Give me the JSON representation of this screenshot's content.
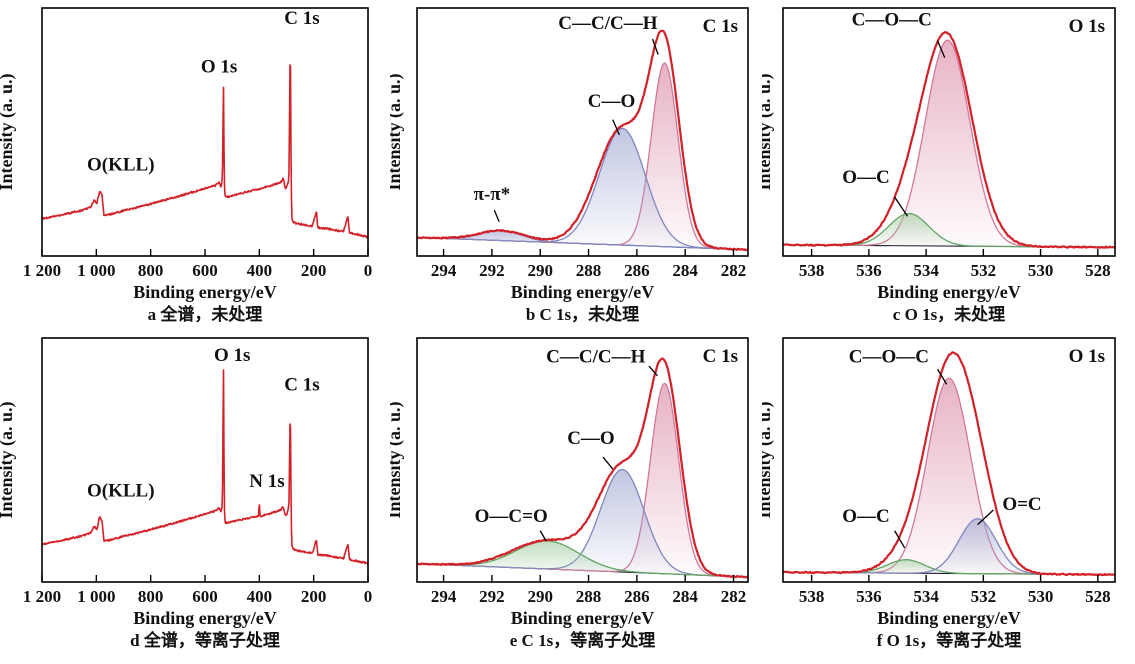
{
  "figure_name": "XPS spectra figure",
  "colors": {
    "envelope": "#d42027",
    "baseline": "#16162c",
    "pink_stroke": "#d4769c",
    "pink_fill": "#d8849f",
    "blue_stroke": "#7e87c0",
    "blue_fill": "#9ba3cf",
    "green_stroke": "#63a563",
    "green_fill": "#9cc99c",
    "text": "#111111"
  },
  "chart_data": [
    {
      "id": "a",
      "type": "line",
      "panel_type": "survey",
      "corner_label": "",
      "xlabel": "Binding energy/eV",
      "ylabel": "Intensity (a. u.)",
      "caption": "a 全谱，未处理",
      "x_range": [
        1200,
        0
      ],
      "tick_values": [
        1200,
        1000,
        800,
        600,
        400,
        200,
        0
      ],
      "tick_labels": [
        "1 200",
        "1 000",
        "800",
        "600",
        "400",
        "200",
        "0"
      ],
      "curve": [
        [
          1200,
          0.15
        ],
        [
          1120,
          0.168
        ],
        [
          1050,
          0.185
        ],
        [
          1020,
          0.198
        ],
        [
          1008,
          0.225
        ],
        [
          998,
          0.212
        ],
        [
          988,
          0.262
        ],
        [
          979,
          0.246
        ],
        [
          972,
          0.163
        ],
        [
          950,
          0.168
        ],
        [
          900,
          0.183
        ],
        [
          850,
          0.196
        ],
        [
          800,
          0.21
        ],
        [
          750,
          0.225
        ],
        [
          700,
          0.24
        ],
        [
          650,
          0.256
        ],
        [
          600,
          0.272
        ],
        [
          560,
          0.285
        ],
        [
          548,
          0.298
        ],
        [
          541,
          0.278
        ],
        [
          536,
          0.31
        ],
        [
          532,
          0.695
        ],
        [
          529,
          0.3
        ],
        [
          526,
          0.237
        ],
        [
          510,
          0.24
        ],
        [
          470,
          0.252
        ],
        [
          430,
          0.263
        ],
        [
          400,
          0.271
        ],
        [
          370,
          0.28
        ],
        [
          340,
          0.29
        ],
        [
          320,
          0.299
        ],
        [
          312,
          0.312
        ],
        [
          304,
          0.272
        ],
        [
          297,
          0.284
        ],
        [
          291,
          0.315
        ],
        [
          286,
          0.9
        ],
        [
          283.5,
          0.43
        ],
        [
          281,
          0.158
        ],
        [
          276,
          0.138
        ],
        [
          265,
          0.132
        ],
        [
          245,
          0.128
        ],
        [
          225,
          0.124
        ],
        [
          205,
          0.12
        ],
        [
          190,
          0.182
        ],
        [
          185,
          0.115
        ],
        [
          170,
          0.112
        ],
        [
          150,
          0.11
        ],
        [
          130,
          0.106
        ],
        [
          110,
          0.102
        ],
        [
          90,
          0.099
        ],
        [
          74,
          0.162
        ],
        [
          68,
          0.094
        ],
        [
          50,
          0.09
        ],
        [
          25,
          0.083
        ],
        [
          0,
          0.076
        ]
      ],
      "labels": [
        {
          "text": "O(KLL)",
          "ev": 910,
          "rel": 0.345
        },
        {
          "text": "O 1s",
          "ev": 548,
          "rel": 0.74
        },
        {
          "text": "C 1s",
          "ev": 243,
          "rel": 0.935
        }
      ]
    },
    {
      "id": "b",
      "type": "area",
      "panel_type": "fitted",
      "corner_label": "C 1s",
      "xlabel": "Binding energy/eV",
      "ylabel": "Intensity (a. u.)",
      "caption": "b C 1s，未处理",
      "x_range": [
        295.1,
        281.4
      ],
      "tick_values": [
        294,
        292,
        290,
        288,
        286,
        284,
        282
      ],
      "tick_labels": [
        "294",
        "292",
        "290",
        "288",
        "286",
        "284",
        "282"
      ],
      "baseline": [
        0.075,
        0.025
      ],
      "components": [
        {
          "name": "C-C/C-H",
          "center": 284.85,
          "sigma": 0.55,
          "amp": 0.74,
          "color": "pink"
        },
        {
          "name": "C-O",
          "center": 286.6,
          "sigma": 0.95,
          "amp": 0.47,
          "color": "blue"
        },
        {
          "name": "pi-pi*",
          "center": 291.6,
          "sigma": 0.85,
          "amp": 0.04,
          "color": "blue"
        }
      ],
      "labels": [
        {
          "text": "C—C/C—H",
          "ev": 287.2,
          "rel": 0.915,
          "leader": [
            [
              285.35,
              0.875
            ],
            [
              285.12,
              0.812
            ]
          ]
        },
        {
          "text": "C—O",
          "ev": 287.05,
          "rel": 0.6,
          "leader": [
            [
              287.0,
              0.55
            ],
            [
              286.72,
              0.488
            ]
          ]
        },
        {
          "text": "π-π*",
          "ev": 292.0,
          "rel": 0.225,
          "leader": [
            [
              291.9,
              0.185
            ],
            [
              291.7,
              0.138
            ]
          ]
        }
      ]
    },
    {
      "id": "c",
      "type": "area",
      "panel_type": "fitted",
      "corner_label": "O 1s",
      "xlabel": "Binding energy/eV",
      "ylabel": "Intensity (a. u.)",
      "caption": "c O 1s，未处理",
      "x_range": [
        539.0,
        527.4
      ],
      "tick_values": [
        538,
        536,
        534,
        532,
        530,
        528
      ],
      "tick_labels": [
        "538",
        "536",
        "534",
        "532",
        "530",
        "528"
      ],
      "baseline": [
        0.045,
        0.035
      ],
      "components": [
        {
          "name": "C-O-C",
          "center": 533.25,
          "sigma": 0.78,
          "amp": 0.83,
          "color": "pink"
        },
        {
          "name": "O-C",
          "center": 534.6,
          "sigma": 0.7,
          "amp": 0.13,
          "color": "green"
        }
      ],
      "labels": [
        {
          "text": "C—O—C",
          "ev": 535.2,
          "rel": 0.93,
          "leader": [
            [
              533.6,
              0.868
            ],
            [
              533.35,
              0.8
            ]
          ]
        },
        {
          "text": "O—C",
          "ev": 536.1,
          "rel": 0.295,
          "leader": [
            [
              535.1,
              0.238
            ],
            [
              534.65,
              0.16
            ]
          ]
        }
      ]
    },
    {
      "id": "d",
      "type": "line",
      "panel_type": "survey",
      "corner_label": "",
      "xlabel": "Binding energy/eV",
      "ylabel": "Intensity (a. u.)",
      "caption": "d 全谱，等离子处理",
      "x_range": [
        1200,
        0
      ],
      "tick_values": [
        1200,
        1000,
        800,
        600,
        400,
        200,
        0
      ],
      "tick_labels": [
        "1 200",
        "1 000",
        "800",
        "600",
        "400",
        "200",
        "0"
      ],
      "curve": [
        [
          1200,
          0.155
        ],
        [
          1120,
          0.172
        ],
        [
          1050,
          0.19
        ],
        [
          1020,
          0.202
        ],
        [
          1008,
          0.228
        ],
        [
          998,
          0.215
        ],
        [
          988,
          0.268
        ],
        [
          979,
          0.25
        ],
        [
          972,
          0.168
        ],
        [
          950,
          0.172
        ],
        [
          900,
          0.188
        ],
        [
          850,
          0.2
        ],
        [
          800,
          0.215
        ],
        [
          750,
          0.23
        ],
        [
          700,
          0.246
        ],
        [
          650,
          0.262
        ],
        [
          600,
          0.278
        ],
        [
          560,
          0.292
        ],
        [
          548,
          0.305
        ],
        [
          541,
          0.285
        ],
        [
          536,
          0.318
        ],
        [
          532,
          0.885
        ],
        [
          529,
          0.308
        ],
        [
          526,
          0.242
        ],
        [
          510,
          0.245
        ],
        [
          470,
          0.255
        ],
        [
          440,
          0.262
        ],
        [
          420,
          0.266
        ],
        [
          403,
          0.272
        ],
        [
          400,
          0.33
        ],
        [
          397,
          0.268
        ],
        [
          370,
          0.278
        ],
        [
          340,
          0.288
        ],
        [
          320,
          0.297
        ],
        [
          312,
          0.31
        ],
        [
          304,
          0.271
        ],
        [
          297,
          0.283
        ],
        [
          291,
          0.314
        ],
        [
          286,
          0.74
        ],
        [
          283.5,
          0.38
        ],
        [
          281,
          0.155
        ],
        [
          276,
          0.136
        ],
        [
          265,
          0.13
        ],
        [
          245,
          0.126
        ],
        [
          225,
          0.122
        ],
        [
          205,
          0.118
        ],
        [
          190,
          0.175
        ],
        [
          185,
          0.113
        ],
        [
          170,
          0.11
        ],
        [
          150,
          0.108
        ],
        [
          130,
          0.104
        ],
        [
          110,
          0.1
        ],
        [
          90,
          0.097
        ],
        [
          74,
          0.158
        ],
        [
          68,
          0.092
        ],
        [
          50,
          0.088
        ],
        [
          25,
          0.082
        ],
        [
          0,
          0.076
        ]
      ],
      "labels": [
        {
          "text": "O(KLL)",
          "ev": 910,
          "rel": 0.35
        },
        {
          "text": "O 1s",
          "ev": 500,
          "rel": 0.905
        },
        {
          "text": "N 1s",
          "ev": 372,
          "rel": 0.39
        },
        {
          "text": "C 1s",
          "ev": 243,
          "rel": 0.785
        }
      ]
    },
    {
      "id": "e",
      "type": "area",
      "panel_type": "fitted",
      "corner_label": "C 1s",
      "xlabel": "Binding energy/eV",
      "ylabel": "Intensity (a. u.)",
      "caption": "e C 1s，等离子处理",
      "x_range": [
        295.1,
        281.4
      ],
      "tick_values": [
        294,
        292,
        290,
        288,
        286,
        284,
        282
      ],
      "tick_labels": [
        "294",
        "292",
        "290",
        "288",
        "286",
        "284",
        "282"
      ],
      "baseline": [
        0.075,
        0.02
      ],
      "components": [
        {
          "name": "C-C/C-H",
          "center": 284.85,
          "sigma": 0.58,
          "amp": 0.78,
          "color": "pink"
        },
        {
          "name": "C-O",
          "center": 286.6,
          "sigma": 0.9,
          "amp": 0.42,
          "color": "blue"
        },
        {
          "name": "O-C=O",
          "center": 289.7,
          "sigma": 1.3,
          "amp": 0.115,
          "color": "green"
        }
      ],
      "labels": [
        {
          "text": "C—C/C—H",
          "ev": 287.7,
          "rel": 0.9,
          "leader": [
            [
              285.5,
              0.885
            ],
            [
              285.15,
              0.845
            ]
          ]
        },
        {
          "text": "C—O",
          "ev": 287.9,
          "rel": 0.565,
          "leader": [
            [
              287.4,
              0.512
            ],
            [
              287.0,
              0.463
            ]
          ]
        },
        {
          "text": "O—C=O",
          "ev": 291.2,
          "rel": 0.245,
          "leader": [
            [
              290.0,
              0.21
            ],
            [
              289.75,
              0.167
            ]
          ]
        }
      ]
    },
    {
      "id": "f",
      "type": "area",
      "panel_type": "fitted",
      "corner_label": "O 1s",
      "xlabel": "Binding energy/eV",
      "ylabel": "Intensity (a. u.)",
      "caption": "f O 1s，等离子处理",
      "x_range": [
        539.0,
        527.4
      ],
      "tick_values": [
        538,
        536,
        534,
        532,
        530,
        528
      ],
      "tick_labels": [
        "538",
        "536",
        "534",
        "532",
        "530",
        "528"
      ],
      "baseline": [
        0.04,
        0.03
      ],
      "components": [
        {
          "name": "C-O-C",
          "center": 533.2,
          "sigma": 0.75,
          "amp": 0.8,
          "color": "pink"
        },
        {
          "name": "O-C",
          "center": 534.7,
          "sigma": 0.65,
          "amp": 0.055,
          "color": "green"
        },
        {
          "name": "O=C",
          "center": 532.2,
          "sigma": 0.65,
          "amp": 0.225,
          "color": "blue"
        }
      ],
      "labels": [
        {
          "text": "C—O—C",
          "ev": 535.3,
          "rel": 0.9,
          "leader": [
            [
              533.6,
              0.872
            ],
            [
              533.28,
              0.81
            ]
          ]
        },
        {
          "text": "O—C",
          "ev": 536.1,
          "rel": 0.245,
          "leader": [
            [
              535.1,
              0.21
            ],
            [
              534.75,
              0.14
            ]
          ]
        },
        {
          "text": "O=C",
          "ev": 530.65,
          "rel": 0.295,
          "leader": [
            [
              531.65,
              0.295
            ],
            [
              532.2,
              0.235
            ]
          ]
        }
      ]
    }
  ]
}
